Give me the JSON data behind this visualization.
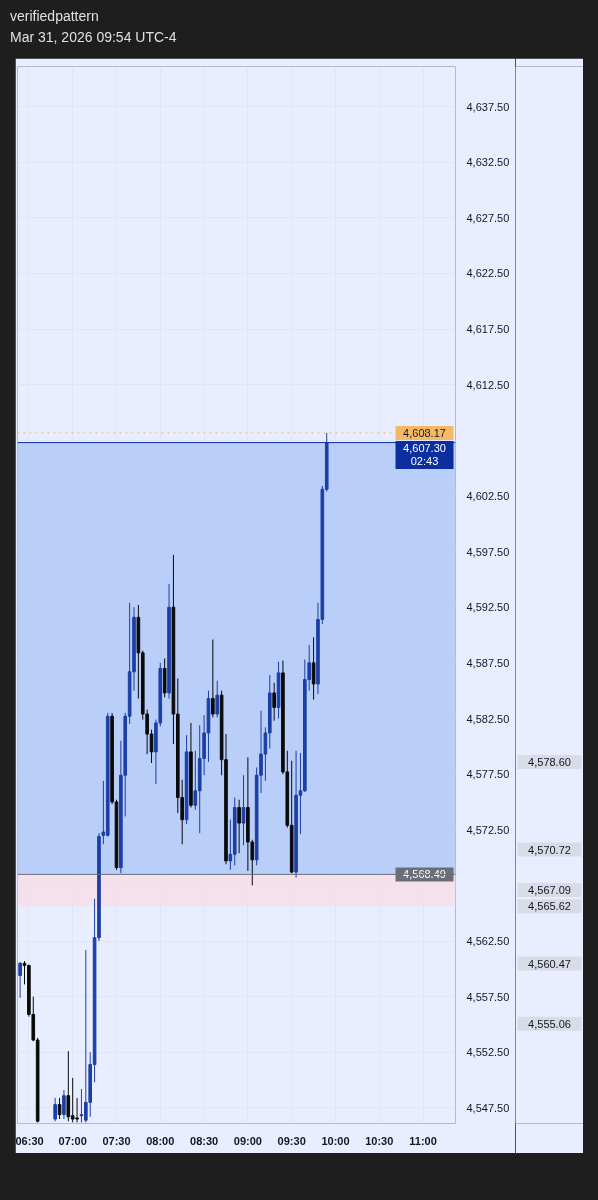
{
  "chart_data": {
    "type": "candlestick",
    "title": "verifiedpattern",
    "subtitle": "Mar 31, 2026 09:54 UTC-4",
    "x": [
      6.4,
      6.45,
      6.5,
      6.55,
      6.6,
      6.8,
      6.85,
      6.9,
      6.95,
      7.0,
      7.05,
      7.1,
      7.15,
      7.2,
      7.25,
      7.3,
      7.35,
      7.4,
      7.45,
      7.5,
      7.55,
      7.6,
      7.65,
      7.7,
      7.75,
      7.8,
      7.85,
      7.9,
      7.95,
      8.0,
      8.05,
      8.1,
      8.15,
      8.2,
      8.25,
      8.3,
      8.35,
      8.4,
      8.45,
      8.5,
      8.55,
      8.6,
      8.65,
      8.7,
      8.75,
      8.8,
      8.85,
      8.9,
      8.95,
      9.0,
      9.05,
      9.1,
      9.15,
      9.2,
      9.25,
      9.3,
      9.35,
      9.4,
      9.45,
      9.5,
      9.55,
      9.6,
      9.65,
      9.7,
      9.75,
      9.8,
      9.85,
      9.9
    ],
    "ohlc": [
      [
        4559.4,
        4560.6,
        4557.4,
        4560.5
      ],
      [
        4560.5,
        4560.7,
        4558.6,
        4560.3
      ],
      [
        4560.3,
        4560.4,
        4555.7,
        4555.9
      ],
      [
        4555.9,
        4557.5,
        4553.5,
        4553.6
      ],
      [
        4553.6,
        4553.8,
        4546.2,
        4546.3
      ],
      [
        4546.5,
        4548.4,
        4546.3,
        4547.8
      ],
      [
        4547.8,
        4548.4,
        4546.5,
        4546.9
      ],
      [
        4546.9,
        4549.1,
        4546.5,
        4548.6
      ],
      [
        4548.6,
        4552.6,
        4546.3,
        4546.7
      ],
      [
        4546.8,
        4550.2,
        4546.2,
        4546.5
      ],
      [
        4546.6,
        4548.4,
        4546.2,
        4546.5
      ],
      [
        4546.8,
        4549.2,
        4546.2,
        4546.9
      ],
      [
        4546.4,
        4561.7,
        4546.2,
        4548.0
      ],
      [
        4548.0,
        4552.5,
        4546.7,
        4551.4
      ],
      [
        4551.4,
        4566.3,
        4549.8,
        4562.8
      ],
      [
        4562.8,
        4572.2,
        4562.5,
        4571.9
      ],
      [
        4572.0,
        4576.9,
        4571.2,
        4572.3
      ],
      [
        4572.0,
        4583.0,
        4571.9,
        4582.7
      ],
      [
        4582.7,
        4583.0,
        4574.8,
        4575.0
      ],
      [
        4575.0,
        4575.2,
        4568.9,
        4569.1
      ],
      [
        4569.1,
        4580.5,
        4568.6,
        4577.4
      ],
      [
        4577.4,
        4583.0,
        4573.7,
        4582.7
      ],
      [
        4582.7,
        4592.9,
        4582.0,
        4586.7
      ],
      [
        4586.7,
        4592.5,
        4585.0,
        4591.6
      ],
      [
        4591.6,
        4592.7,
        4584.3,
        4588.4
      ],
      [
        4588.4,
        4588.6,
        4582.4,
        4582.9
      ],
      [
        4582.9,
        4583.3,
        4579.3,
        4581.1
      ],
      [
        4581.1,
        4581.5,
        4578.5,
        4579.5
      ],
      [
        4579.5,
        4582.4,
        4576.6,
        4582.1
      ],
      [
        4582.1,
        4587.5,
        4581.8,
        4587.0
      ],
      [
        4587.0,
        4587.9,
        4584.4,
        4584.8
      ],
      [
        4584.8,
        4594.6,
        4584.3,
        4592.5
      ],
      [
        4592.5,
        4597.2,
        4580.2,
        4582.9
      ],
      [
        4582.9,
        4586.1,
        4574.0,
        4575.4
      ],
      [
        4575.4,
        4577.0,
        4571.2,
        4573.4
      ],
      [
        4573.4,
        4581.0,
        4573.0,
        4579.5
      ],
      [
        4579.5,
        4582.1,
        4574.5,
        4574.7
      ],
      [
        4574.7,
        4579.6,
        4574.3,
        4576.0
      ],
      [
        4576.0,
        4581.9,
        4572.2,
        4578.9
      ],
      [
        4578.9,
        4582.8,
        4577.4,
        4581.2
      ],
      [
        4581.2,
        4585.0,
        4578.6,
        4584.3
      ],
      [
        4584.3,
        4589.6,
        4582.6,
        4582.9
      ],
      [
        4582.9,
        4585.9,
        4582.6,
        4584.6
      ],
      [
        4584.6,
        4585.0,
        4577.4,
        4578.8
      ],
      [
        4578.8,
        4581.1,
        4569.4,
        4569.7
      ],
      [
        4569.7,
        4573.4,
        4568.9,
        4570.3
      ],
      [
        4570.3,
        4575.4,
        4569.3,
        4574.5
      ],
      [
        4574.5,
        4575.2,
        4570.4,
        4573.1
      ],
      [
        4573.1,
        4577.4,
        4571.1,
        4574.5
      ],
      [
        4574.5,
        4579.0,
        4568.8,
        4571.4
      ],
      [
        4571.4,
        4571.6,
        4567.5,
        4569.8
      ],
      [
        4569.8,
        4578.1,
        4569.3,
        4577.4
      ],
      [
        4577.4,
        4583.2,
        4575.8,
        4579.3
      ],
      [
        4579.3,
        4581.7,
        4576.9,
        4581.2
      ],
      [
        4581.2,
        4586.4,
        4579.8,
        4584.8
      ],
      [
        4584.8,
        4585.7,
        4582.3,
        4583.5
      ],
      [
        4583.5,
        4587.6,
        4582.5,
        4586.6
      ],
      [
        4586.6,
        4587.7,
        4577.5,
        4577.7
      ],
      [
        4577.7,
        4579.6,
        4572.7,
        4572.9
      ],
      [
        4572.9,
        4578.7,
        4568.6,
        4568.7
      ],
      [
        4568.7,
        4579.6,
        4568.2,
        4575.6
      ],
      [
        4575.6,
        4579.4,
        4572.1,
        4576.0
      ],
      [
        4576.0,
        4587.8,
        4575.9,
        4586.0
      ],
      [
        4586.0,
        4589.1,
        4585.0,
        4587.5
      ],
      [
        4587.5,
        4589.8,
        4584.2,
        4585.6
      ],
      [
        4585.6,
        4592.9,
        4584.7,
        4591.4
      ],
      [
        4591.4,
        4603.4,
        4591.0,
        4603.1
      ],
      [
        4603.1,
        4608.17,
        4602.9,
        4607.3
      ]
    ],
    "colors": [
      "#1c3fa6",
      "#0a0a0a",
      "#0a0a0a",
      "#0a0a0a",
      "#0a0a0a",
      "#1c3fa6",
      "#0a0a0a",
      "#1c3fa6",
      "#0a0a0a",
      "#0a0a0a",
      "#0a0a0a",
      "#1c3fa6",
      "#1c3fa6",
      "#1c3fa6",
      "#1c3fa6",
      "#1c3fa6",
      "#1c3fa6",
      "#1c3fa6",
      "#0a0a0a",
      "#0a0a0a",
      "#1c3fa6",
      "#1c3fa6",
      "#1c3fa6",
      "#1c3fa6",
      "#0a0a0a",
      "#0a0a0a",
      "#0a0a0a",
      "#0a0a0a",
      "#1c3fa6",
      "#1c3fa6",
      "#0a0a0a",
      "#1c3fa6",
      "#0a0a0a",
      "#0a0a0a",
      "#0a0a0a",
      "#1c3fa6",
      "#0a0a0a",
      "#1c3fa6",
      "#1c3fa6",
      "#1c3fa6",
      "#1c3fa6",
      "#0a0a0a",
      "#1c3fa6",
      "#0a0a0a",
      "#0a0a0a",
      "#1c3fa6",
      "#1c3fa6",
      "#0a0a0a",
      "#1c3fa6",
      "#0a0a0a",
      "#0a0a0a",
      "#1c3fa6",
      "#1c3fa6",
      "#1c3fa6",
      "#1c3fa6",
      "#0a0a0a",
      "#1c3fa6",
      "#0a0a0a",
      "#0a0a0a",
      "#0a0a0a",
      "#1c3fa6",
      "#1c3fa6",
      "#1c3fa6",
      "#1c3fa6",
      "#0a0a0a",
      "#1c3fa6",
      "#1c3fa6",
      "#1c3fa6"
    ],
    "xlim": [
      6.37,
      11.37
    ],
    "ylim": [
      4546.1,
      4641.1
    ],
    "xticks": [
      {
        "value": 6.5,
        "label": "06:30"
      },
      {
        "value": 7.0,
        "label": "07:00"
      },
      {
        "value": 7.5,
        "label": "07:30"
      },
      {
        "value": 8.0,
        "label": "08:00"
      },
      {
        "value": 8.5,
        "label": "08:30"
      },
      {
        "value": 9.0,
        "label": "09:00"
      },
      {
        "value": 9.5,
        "label": "09:30"
      },
      {
        "value": 10.0,
        "label": "10:00"
      },
      {
        "value": 10.5,
        "label": "10:30"
      },
      {
        "value": 11.0,
        "label": "11:00"
      }
    ],
    "yticks": [
      {
        "value": 4547.5,
        "label": "4,547.50"
      },
      {
        "value": 4552.5,
        "label": "4,552.50"
      },
      {
        "value": 4557.5,
        "label": "4,557.50"
      },
      {
        "value": 4562.5,
        "label": "4,562.50"
      },
      {
        "value": 4567.5,
        "label": null
      },
      {
        "value": 4572.5,
        "label": "4,572.50"
      },
      {
        "value": 4577.5,
        "label": "4,577.50"
      },
      {
        "value": 4582.5,
        "label": "4,582.50"
      },
      {
        "value": 4587.5,
        "label": "4,587.50"
      },
      {
        "value": 4592.5,
        "label": "4,592.50"
      },
      {
        "value": 4597.5,
        "label": "4,597.50"
      },
      {
        "value": 4602.5,
        "label": "4,602.50"
      },
      {
        "value": 4607.5,
        "label": null
      },
      {
        "value": 4612.5,
        "label": "4,612.50"
      },
      {
        "value": 4617.5,
        "label": "4,617.50"
      },
      {
        "value": 4622.5,
        "label": "4,622.50"
      },
      {
        "value": 4627.5,
        "label": "4,627.50"
      },
      {
        "value": 4632.5,
        "label": "4,632.50"
      },
      {
        "value": 4637.5,
        "label": "4,637.50"
      }
    ],
    "grid": true,
    "bands": [
      {
        "axis": "y",
        "from": 4568.49,
        "to": 4607.3,
        "color": "#a9c3f6"
      },
      {
        "axis": "y",
        "from": 4565.62,
        "to": 4568.49,
        "color": "#f9dce5"
      }
    ],
    "ref_lines": [
      {
        "axis": "y",
        "value": 4608.17,
        "label": "4,608.17",
        "color": "#f5b963",
        "line_style": "dotted"
      },
      {
        "axis": "y",
        "value": 4607.3,
        "label": "4,607.30\n02:43",
        "color": "#0d2f9e",
        "line_style": "solid"
      },
      {
        "axis": "y",
        "value": 4568.49,
        "label": "4,568.49",
        "color": "#6b6e78",
        "line_style": "solid"
      }
    ],
    "annotations": [
      "4,578.60",
      "4,570.72",
      "4,567.09",
      "4,565.62",
      "4,560.47",
      "4,555.06"
    ]
  }
}
